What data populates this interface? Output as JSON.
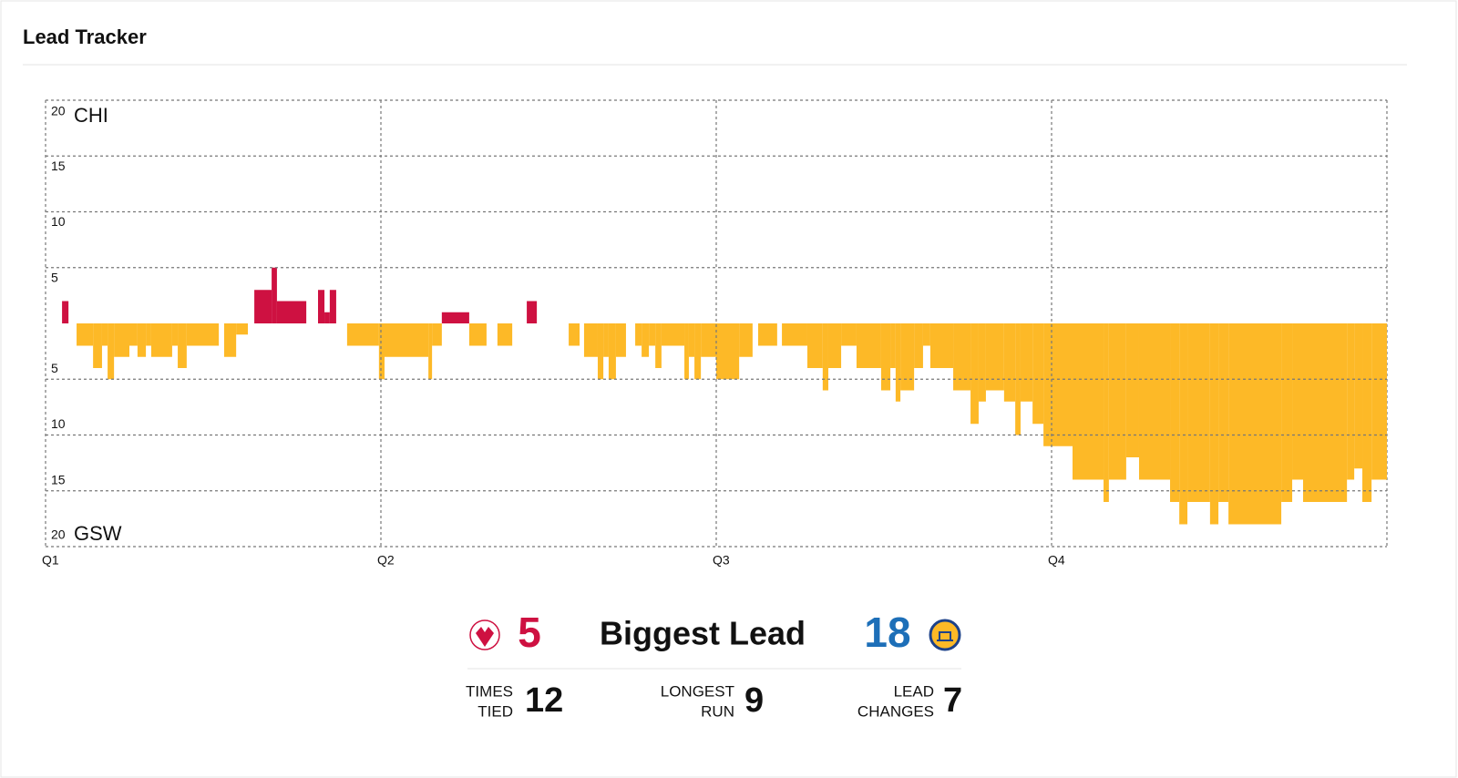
{
  "header": {
    "title": "Lead Tracker"
  },
  "chart_data": {
    "type": "lead_tracker",
    "series": [
      {
        "name": "CHI",
        "color": "#ce1141"
      },
      {
        "name": "GSW",
        "color": "#fdb927"
      }
    ],
    "x": [
      0,
      0.59,
      0.82,
      1.11,
      1.7,
      2.02,
      2.22,
      2.45,
      3.0,
      3.29,
      3.59,
      3.78,
      4.53,
      4.73,
      5.05,
      6.2,
      6.39,
      6.82,
      7.24,
      7.47,
      8.09,
      8.28,
      9.33,
      9.75,
      9.98,
      10.17,
      10.4,
      10.79,
      11.93,
      12.13,
      13.7,
      13.83,
      14.18,
      15.16,
      15.78,
      16.17,
      16.7,
      17.22,
      17.58,
      18.72,
      19.11,
      19.27,
      19.76,
      19.96,
      20.15,
      20.41,
      20.77,
      21.1,
      21.33,
      21.59,
      21.82,
      22.04,
      22.86,
      23.02,
      23.22,
      23.45,
      24.0,
      24.82,
      25.3,
      25.5,
      26.18,
      26.35,
      27.26,
      27.81,
      28.01,
      28.47,
      29.02,
      29.9,
      30.23,
      30.42,
      30.59,
      31.08,
      31.4,
      31.66,
      32.48,
      33.1,
      33.39,
      33.65,
      34.3,
      34.7,
      34.89,
      35.32,
      35.71,
      36.75,
      37.86,
      38.05,
      38.67,
      39.13,
      40.24,
      40.57,
      40.86,
      41.67,
      41.97,
      42.33,
      44.22,
      44.61,
      45.0,
      46.57,
      46.83,
      47.12,
      47.45
    ],
    "values": [
      0,
      2,
      0,
      -2,
      -4,
      -2,
      -5,
      -3,
      -2,
      -3,
      -2,
      -3,
      -2,
      -4,
      -2,
      0,
      -3,
      -1,
      0,
      3,
      5,
      2,
      0,
      3,
      1,
      3,
      0,
      -2,
      -5,
      -3,
      -5,
      -2,
      1,
      -2,
      0,
      -2,
      0,
      2,
      0,
      -2,
      0,
      -3,
      -5,
      -3,
      -5,
      -3,
      0,
      -2,
      -3,
      -2,
      -4,
      -2,
      -5,
      -3,
      -5,
      -3,
      -5,
      -3,
      0,
      -2,
      0,
      -2,
      -4,
      -6,
      -4,
      -2,
      -4,
      -6,
      -4,
      -7,
      -6,
      -4,
      -2,
      -4,
      -6,
      -9,
      -7,
      -6,
      -7,
      -10,
      -7,
      -9,
      -11,
      -14,
      -16,
      -14,
      -12,
      -14,
      -16,
      -18,
      -16,
      -18,
      -16,
      -18,
      -16,
      -14,
      -16,
      -14,
      -13,
      -16,
      -14
    ],
    "xlim": [
      0,
      48
    ],
    "xticks": [
      {
        "value": 0,
        "label": "Q1"
      },
      {
        "value": 12,
        "label": "Q2"
      },
      {
        "value": 24,
        "label": "Q3"
      },
      {
        "value": 36,
        "label": "Q4"
      }
    ],
    "ylim": [
      -20,
      20
    ],
    "yticks": [
      20,
      15,
      10,
      5,
      {
        "value": -5,
        "label": "5"
      },
      {
        "value": -10,
        "label": "10"
      },
      {
        "value": -15,
        "label": "15"
      },
      {
        "value": -20,
        "label": "20"
      }
    ],
    "grid": true
  },
  "stats": {
    "biggest_lead": {
      "label": "Biggest Lead",
      "chi": 5,
      "gsw": 18,
      "chi_color": "#ce1141",
      "gsw_color": "#1d6fb8"
    },
    "items": [
      {
        "label_lines": [
          "TIMES",
          "TIED"
        ],
        "value": 12
      },
      {
        "label_lines": [
          "LONGEST",
          "RUN"
        ],
        "value": 9
      },
      {
        "label_lines": [
          "LEAD",
          "CHANGES"
        ],
        "value": 7
      }
    ]
  }
}
